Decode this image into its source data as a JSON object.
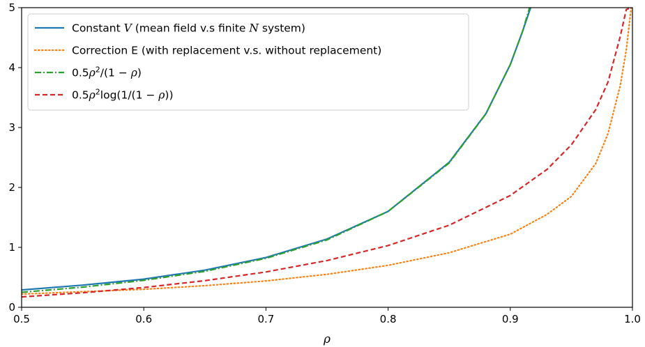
{
  "chart_data": {
    "type": "line",
    "title": "",
    "xlabel": "ρ",
    "ylabel": "",
    "xlim": [
      0.5,
      1.0
    ],
    "ylim": [
      0,
      5
    ],
    "xticks": [
      "0.5",
      "0.6",
      "0.7",
      "0.8",
      "0.9",
      "1.0"
    ],
    "yticks": [
      "0",
      "1",
      "2",
      "3",
      "4",
      "5"
    ],
    "grid": false,
    "legend_position": "top-left",
    "series": [
      {
        "name": "Constant V (mean field v.s finite N system)",
        "legend": {
          "pre": "Constant ",
          "italic": "V",
          "post": " (mean field v.s finite ",
          "italic2": "N",
          "post2": " system)"
        },
        "color": "#1f77b4",
        "style": "solid",
        "x": [
          0.5,
          0.55,
          0.6,
          0.65,
          0.7,
          0.75,
          0.8,
          0.85,
          0.88,
          0.9,
          0.91,
          0.92
        ],
        "y": [
          0.29,
          0.37,
          0.47,
          0.62,
          0.83,
          1.14,
          1.6,
          2.42,
          3.23,
          4.05,
          4.6,
          5.2
        ]
      },
      {
        "name": "Correction E (with replacement v.s. without replacement)",
        "legend": {
          "pre": "Correction E (with replacement v.s. without replacement)"
        },
        "color": "#ff7f0e",
        "style": "dotted",
        "x": [
          0.5,
          0.55,
          0.6,
          0.65,
          0.7,
          0.75,
          0.8,
          0.85,
          0.9,
          0.93,
          0.95,
          0.97,
          0.98,
          0.99,
          0.995,
          0.999
        ],
        "y": [
          0.22,
          0.26,
          0.3,
          0.36,
          0.44,
          0.55,
          0.7,
          0.91,
          1.22,
          1.55,
          1.85,
          2.4,
          2.9,
          3.7,
          4.3,
          5.0
        ]
      },
      {
        "name": "0.5ρ²/(1 − ρ)",
        "legend": {
          "pre": "0.5",
          "italic": "ρ",
          "sup": "2",
          "post": "/(1 − ",
          "italic2": "ρ",
          "post2": ")"
        },
        "color": "#2ca02c",
        "style": "dashdot",
        "x": [
          0.5,
          0.55,
          0.6,
          0.65,
          0.7,
          0.75,
          0.8,
          0.85,
          0.88,
          0.9,
          0.91,
          0.92
        ],
        "y": [
          0.25,
          0.336,
          0.45,
          0.6,
          0.817,
          1.125,
          1.6,
          2.408,
          3.227,
          4.05,
          4.6,
          5.29
        ]
      },
      {
        "name": "0.5ρ²log(1/(1 − ρ))",
        "legend": {
          "pre": "0.5",
          "italic": "ρ",
          "sup": "2",
          "post": "log(1/(1 − ",
          "italic2": "ρ",
          "post2": "))"
        },
        "color": "#d62728",
        "style": "dashed",
        "x": [
          0.5,
          0.55,
          0.6,
          0.65,
          0.7,
          0.75,
          0.8,
          0.85,
          0.9,
          0.93,
          0.95,
          0.97,
          0.98,
          0.99,
          0.995,
          0.999
        ],
        "y": [
          0.173,
          0.242,
          0.33,
          0.444,
          0.59,
          0.78,
          1.03,
          1.37,
          1.865,
          2.3,
          2.71,
          3.3,
          3.76,
          4.52,
          4.97,
          5.0
        ]
      }
    ]
  }
}
